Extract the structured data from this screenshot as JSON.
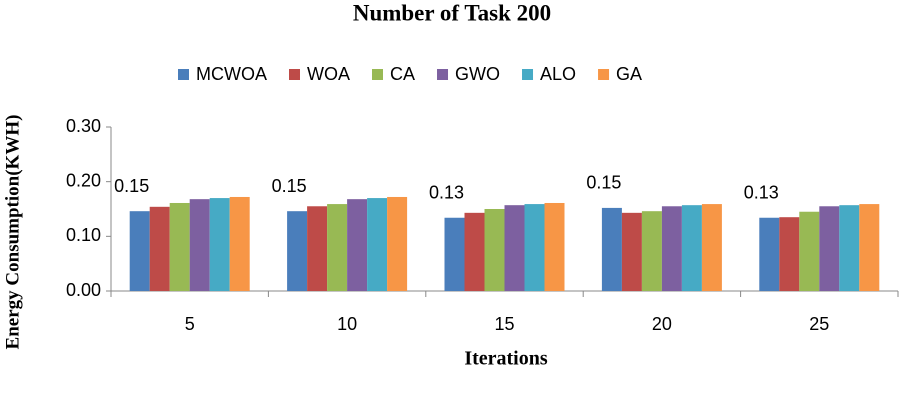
{
  "chart_data": {
    "type": "bar",
    "title": "Number of Task 200",
    "x_label": "Iterations",
    "y_label": "Energy Consumption(KWH)",
    "categories": [
      "5",
      "10",
      "15",
      "20",
      "25"
    ],
    "series": [
      {
        "name": "MCWOA",
        "color": "#4a7ebb",
        "values": [
          0.146,
          0.146,
          0.134,
          0.152,
          0.134
        ],
        "value_labels": [
          "0.15",
          "0.15",
          "0.13",
          "0.15",
          "0.13"
        ]
      },
      {
        "name": "WOA",
        "color": "#be4b48",
        "values": [
          0.154,
          0.155,
          0.143,
          0.143,
          0.135
        ]
      },
      {
        "name": "CA",
        "color": "#98b954",
        "values": [
          0.161,
          0.159,
          0.15,
          0.146,
          0.145
        ]
      },
      {
        "name": "GWO",
        "color": "#7d60a0",
        "values": [
          0.168,
          0.168,
          0.157,
          0.155,
          0.155
        ]
      },
      {
        "name": "ALO",
        "color": "#46aac5",
        "values": [
          0.17,
          0.17,
          0.159,
          0.157,
          0.157
        ]
      },
      {
        "name": "GA",
        "color": "#f79646",
        "values": [
          0.172,
          0.172,
          0.161,
          0.159,
          0.159
        ]
      }
    ],
    "ylim": [
      0,
      0.3
    ],
    "yticks": [
      {
        "value": 0,
        "label": "0.00"
      },
      {
        "value": 0.1,
        "label": "0.10"
      },
      {
        "value": 0.2,
        "label": "0.20"
      },
      {
        "value": 0.3,
        "label": "0.30"
      }
    ],
    "grid": false,
    "legend": "top"
  }
}
